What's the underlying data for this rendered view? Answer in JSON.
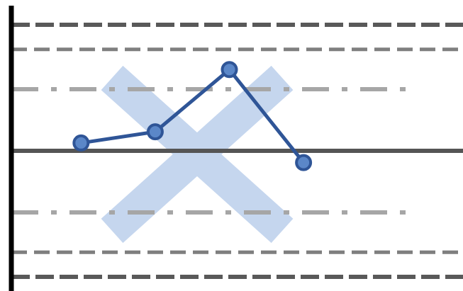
{
  "chart_data": {
    "type": "line",
    "title": "",
    "xlabel": "",
    "ylabel": "",
    "grid": false,
    "legend": "none",
    "x": [
      1,
      2,
      3,
      4
    ],
    "y": [
      0.14,
      0.34,
      1.45,
      -0.21
    ],
    "xlim": [
      0.06,
      6.15
    ],
    "ylim": [
      -2.35,
      2.35
    ],
    "reference_lines": [
      {
        "kind": "center-line",
        "value": 0,
        "style": "solid",
        "color": "#555555"
      },
      {
        "kind": "warning-limit",
        "value": 1.1,
        "style": "dash-dot",
        "color": "#a6a6a6"
      },
      {
        "kind": "warning-limit",
        "value": -1.1,
        "style": "dash-dot",
        "color": "#a6a6a6"
      },
      {
        "kind": "control-limit",
        "value": 1.81,
        "style": "dashed",
        "color": "#7f7f7f"
      },
      {
        "kind": "control-limit",
        "value": -1.81,
        "style": "dashed",
        "color": "#7f7f7f"
      },
      {
        "kind": "specification-limit",
        "value": 2.25,
        "style": "long-dashed",
        "color": "#595959"
      },
      {
        "kind": "specification-limit",
        "value": -2.25,
        "style": "long-dashed",
        "color": "#595959"
      }
    ],
    "overlay": {
      "shape": "cross",
      "color": "#c5d6ee"
    },
    "colors": {
      "series_line": "#2f5597",
      "marker_fill": "#5b87c8",
      "marker_stroke": "#2f5597",
      "axis": "#000000"
    }
  }
}
